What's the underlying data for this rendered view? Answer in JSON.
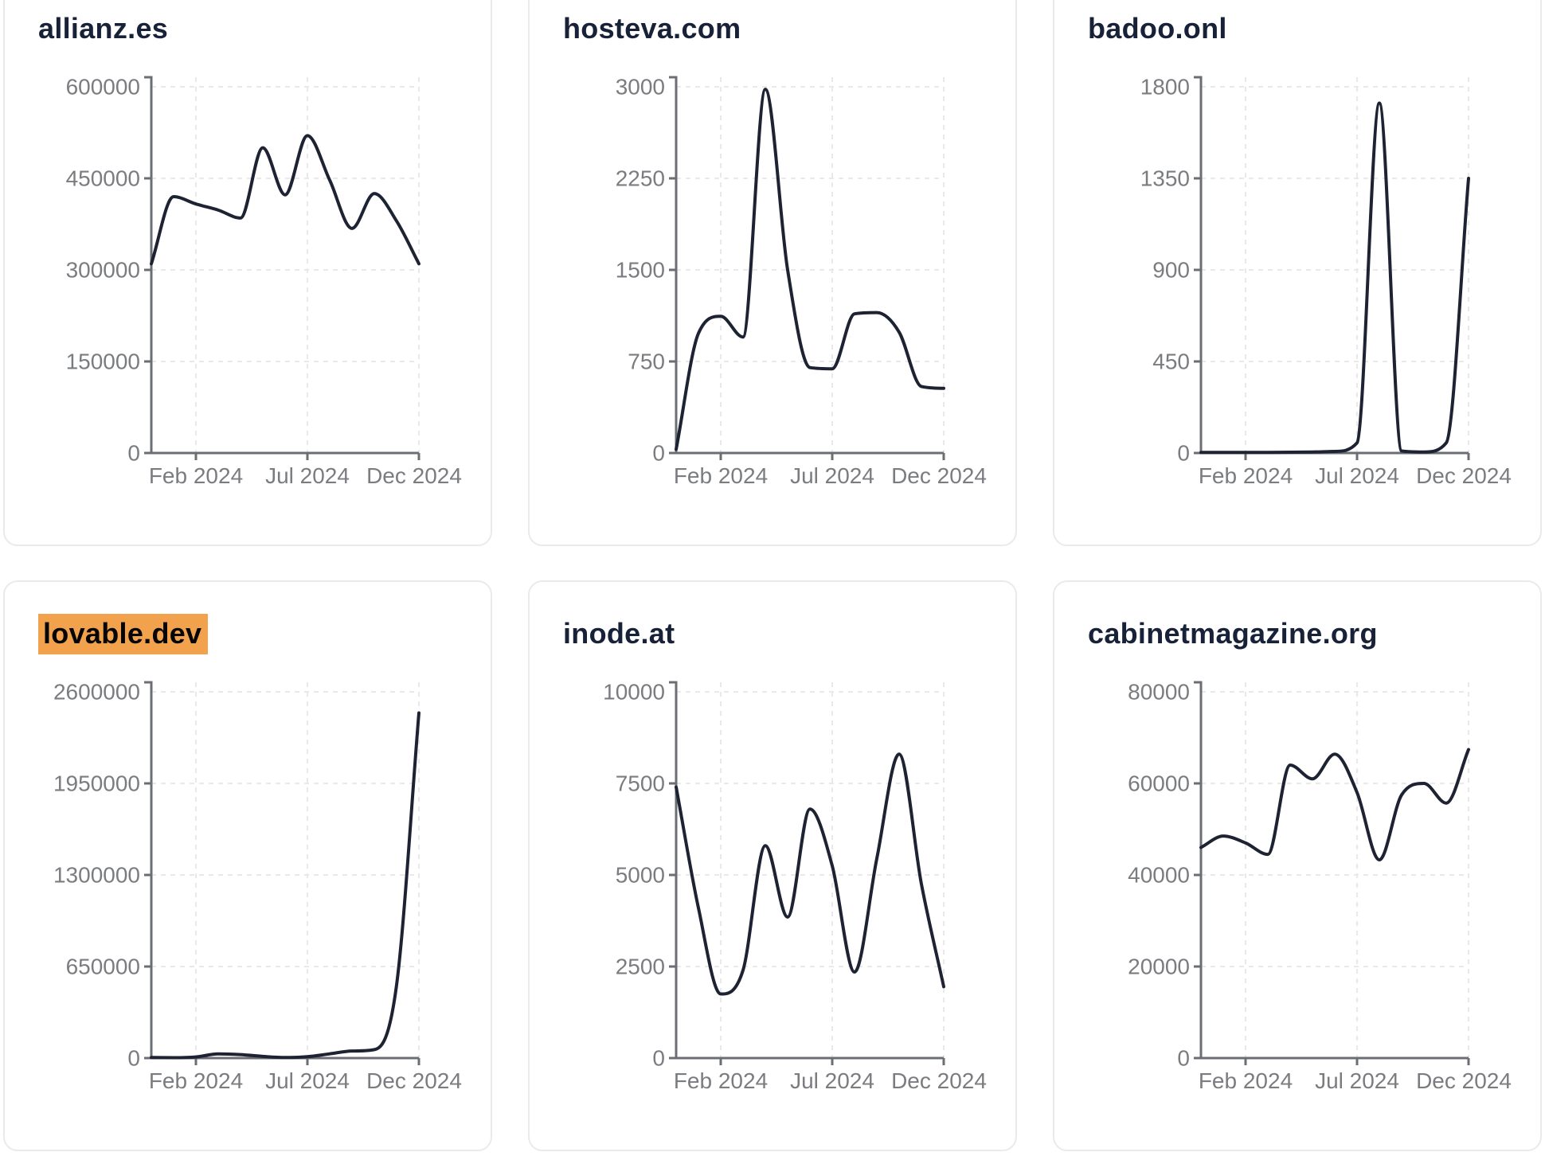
{
  "page": {
    "background": "#ffffff"
  },
  "shared": {
    "x_tick_labels": [
      "Feb 2024",
      "Jul 2024",
      "Dec 2024"
    ],
    "x_tick_indices": [
      2,
      7,
      12
    ],
    "categories": [
      "Dec 2023",
      "Jan 2024",
      "Feb 2024",
      "Mar 2024",
      "Apr 2024",
      "May 2024",
      "Jun 2024",
      "Jul 2024",
      "Aug 2024",
      "Sep 2024",
      "Oct 2024",
      "Nov 2024",
      "Dec 2024"
    ],
    "grid": "dashed",
    "legend": "none",
    "colors": {
      "line": "#1d2333",
      "axis": "#6b6e73",
      "tick_label": "#7a7c80",
      "gridline": "#e9e9eb",
      "title": "#172138",
      "highlight": "#f2a24c",
      "card_border": "#e8eaed",
      "card_background": "#ffffff"
    }
  },
  "chart_data": [
    {
      "type": "line",
      "title": "allianz.es",
      "highlighted": false,
      "categories": [
        "Dec 2023",
        "Jan 2024",
        "Feb 2024",
        "Mar 2024",
        "Apr 2024",
        "May 2024",
        "Jun 2024",
        "Jul 2024",
        "Aug 2024",
        "Sep 2024",
        "Oct 2024",
        "Nov 2024",
        "Dec 2024"
      ],
      "values": [
        310000,
        420000,
        408000,
        398000,
        385000,
        500000,
        423000,
        520000,
        447000,
        368000,
        425000,
        380000,
        310000
      ],
      "y_ticks": [
        0,
        150000,
        300000,
        450000,
        600000
      ],
      "ylim": [
        0,
        600000
      ],
      "xlabel": "",
      "ylabel": ""
    },
    {
      "type": "line",
      "title": "hosteva.com",
      "highlighted": false,
      "categories": [
        "Dec 2023",
        "Jan 2024",
        "Feb 2024",
        "Mar 2024",
        "Apr 2024",
        "May 2024",
        "Jun 2024",
        "Jul 2024",
        "Aug 2024",
        "Sep 2024",
        "Oct 2024",
        "Nov 2024",
        "Dec 2024"
      ],
      "values": [
        30,
        980,
        1120,
        950,
        2980,
        1500,
        700,
        690,
        1140,
        1150,
        990,
        545,
        530
      ],
      "y_ticks": [
        0,
        750,
        1500,
        2250,
        3000
      ],
      "ylim": [
        0,
        3000
      ],
      "xlabel": "",
      "ylabel": ""
    },
    {
      "type": "line",
      "title": "badoo.onl",
      "highlighted": false,
      "categories": [
        "Dec 2023",
        "Jan 2024",
        "Feb 2024",
        "Mar 2024",
        "Apr 2024",
        "May 2024",
        "Jun 2024",
        "Jul 2024",
        "Aug 2024",
        "Sep 2024",
        "Oct 2024",
        "Nov 2024",
        "Dec 2024"
      ],
      "values": [
        3,
        3,
        3,
        3,
        4,
        5,
        8,
        50,
        1720,
        10,
        5,
        50,
        1350
      ],
      "y_ticks": [
        0,
        450,
        900,
        1350,
        1800
      ],
      "ylim": [
        0,
        1800
      ],
      "xlabel": "",
      "ylabel": ""
    },
    {
      "type": "line",
      "title": "lovable.dev",
      "highlighted": true,
      "categories": [
        "Dec 2023",
        "Jan 2024",
        "Feb 2024",
        "Mar 2024",
        "Apr 2024",
        "May 2024",
        "Jun 2024",
        "Jul 2024",
        "Aug 2024",
        "Sep 2024",
        "Oct 2024",
        "Nov 2024",
        "Dec 2024"
      ],
      "values": [
        4000,
        3000,
        8000,
        30000,
        25000,
        12000,
        4000,
        10000,
        30000,
        50000,
        60000,
        520000,
        2450000
      ],
      "y_ticks": [
        0,
        650000,
        1300000,
        1950000,
        2600000
      ],
      "ylim": [
        0,
        2600000
      ],
      "xlabel": "",
      "ylabel": ""
    },
    {
      "type": "line",
      "title": "inode.at",
      "highlighted": false,
      "categories": [
        "Dec 2023",
        "Jan 2024",
        "Feb 2024",
        "Mar 2024",
        "Apr 2024",
        "May 2024",
        "Jun 2024",
        "Jul 2024",
        "Aug 2024",
        "Sep 2024",
        "Oct 2024",
        "Nov 2024",
        "Dec 2024"
      ],
      "values": [
        7400,
        4100,
        1750,
        2400,
        5800,
        3850,
        6800,
        5250,
        2350,
        5450,
        8300,
        4750,
        1950
      ],
      "y_ticks": [
        0,
        2500,
        5000,
        7500,
        10000
      ],
      "ylim": [
        0,
        10000
      ],
      "xlabel": "",
      "ylabel": ""
    },
    {
      "type": "line",
      "title": "cabinetmagazine.org",
      "highlighted": false,
      "categories": [
        "Dec 2023",
        "Jan 2024",
        "Feb 2024",
        "Mar 2024",
        "Apr 2024",
        "May 2024",
        "Jun 2024",
        "Jul 2024",
        "Aug 2024",
        "Sep 2024",
        "Oct 2024",
        "Nov 2024",
        "Dec 2024"
      ],
      "values": [
        46000,
        48500,
        47000,
        44500,
        64000,
        61000,
        66400,
        58000,
        43300,
        57500,
        60000,
        55700,
        67400
      ],
      "y_ticks": [
        0,
        20000,
        40000,
        60000,
        80000
      ],
      "ylim": [
        0,
        80000
      ],
      "xlabel": "",
      "ylabel": ""
    }
  ]
}
